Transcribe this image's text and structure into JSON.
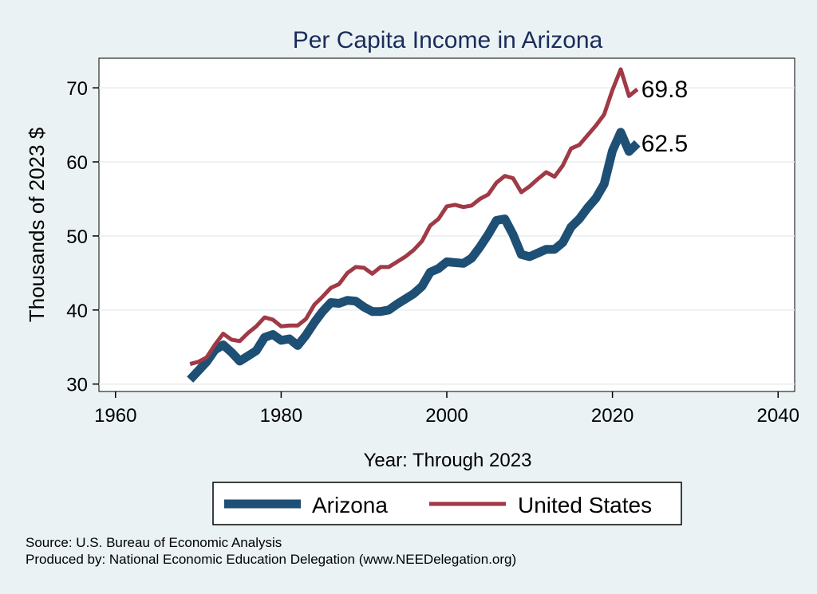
{
  "chart_data": {
    "type": "line",
    "title": "Per Capita Income in Arizona",
    "xlabel": "Year: Through 2023",
    "ylabel": "Thousands of 2023 $",
    "xlim": [
      1958,
      2042
    ],
    "ylim": [
      29,
      74
    ],
    "xticks": [
      1960,
      1980,
      2000,
      2020,
      2040
    ],
    "yticks": [
      30,
      40,
      50,
      60,
      70
    ],
    "grid": true,
    "legend_position": "bottom",
    "series": [
      {
        "name": "Arizona",
        "color": "#1e4f74",
        "end_label": "62.5",
        "x": [
          1969,
          1970,
          1971,
          1972,
          1973,
          1974,
          1975,
          1976,
          1977,
          1978,
          1979,
          1980,
          1981,
          1982,
          1983,
          1984,
          1985,
          1986,
          1987,
          1988,
          1989,
          1990,
          1991,
          1992,
          1993,
          1994,
          1995,
          1996,
          1997,
          1998,
          1999,
          2000,
          2001,
          2002,
          2003,
          2004,
          2005,
          2006,
          2007,
          2008,
          2009,
          2010,
          2011,
          2012,
          2013,
          2014,
          2015,
          2016,
          2017,
          2018,
          2019,
          2020,
          2021,
          2022,
          2023
        ],
        "y": [
          30.6,
          31.8,
          33.0,
          34.6,
          35.3,
          34.3,
          33.1,
          33.8,
          34.5,
          36.3,
          36.7,
          35.9,
          36.1,
          35.2,
          36.6,
          38.3,
          39.8,
          41.0,
          40.9,
          41.3,
          41.2,
          40.4,
          39.8,
          39.8,
          40.0,
          40.8,
          41.5,
          42.2,
          43.2,
          45.1,
          45.6,
          46.5,
          46.4,
          46.3,
          47.0,
          48.5,
          50.2,
          52.1,
          52.3,
          50.2,
          47.5,
          47.2,
          47.7,
          48.2,
          48.2,
          49.1,
          51.2,
          52.3,
          53.8,
          55.1,
          57.0,
          61.5,
          64.0,
          61.4,
          62.5
        ]
      },
      {
        "name": "United States",
        "color": "#a03a46",
        "end_label": "69.8",
        "x": [
          1969,
          1970,
          1971,
          1972,
          1973,
          1974,
          1975,
          1976,
          1977,
          1978,
          1979,
          1980,
          1981,
          1982,
          1983,
          1984,
          1985,
          1986,
          1987,
          1988,
          1989,
          1990,
          1991,
          1992,
          1993,
          1994,
          1995,
          1996,
          1997,
          1998,
          1999,
          2000,
          2001,
          2002,
          2003,
          2004,
          2005,
          2006,
          2007,
          2008,
          2009,
          2010,
          2011,
          2012,
          2013,
          2014,
          2015,
          2016,
          2017,
          2018,
          2019,
          2020,
          2021,
          2022,
          2023
        ],
        "y": [
          32.7,
          33.0,
          33.6,
          35.3,
          36.8,
          36.0,
          35.8,
          36.9,
          37.8,
          39.0,
          38.7,
          37.8,
          37.9,
          37.9,
          38.8,
          40.7,
          41.8,
          43.0,
          43.5,
          45.0,
          45.8,
          45.7,
          44.9,
          45.8,
          45.8,
          46.5,
          47.2,
          48.1,
          49.3,
          51.4,
          52.3,
          54.0,
          54.2,
          53.9,
          54.1,
          55.0,
          55.6,
          57.2,
          58.1,
          57.8,
          55.9,
          56.7,
          57.7,
          58.6,
          58.0,
          59.5,
          61.8,
          62.3,
          63.6,
          64.9,
          66.4,
          69.7,
          72.5,
          68.9,
          69.8
        ]
      }
    ],
    "source_line": "Source: U.S. Bureau of Economic Analysis",
    "produced_line": "Produced by: National Economic Education Delegation (www.NEEDelegation.org)"
  }
}
